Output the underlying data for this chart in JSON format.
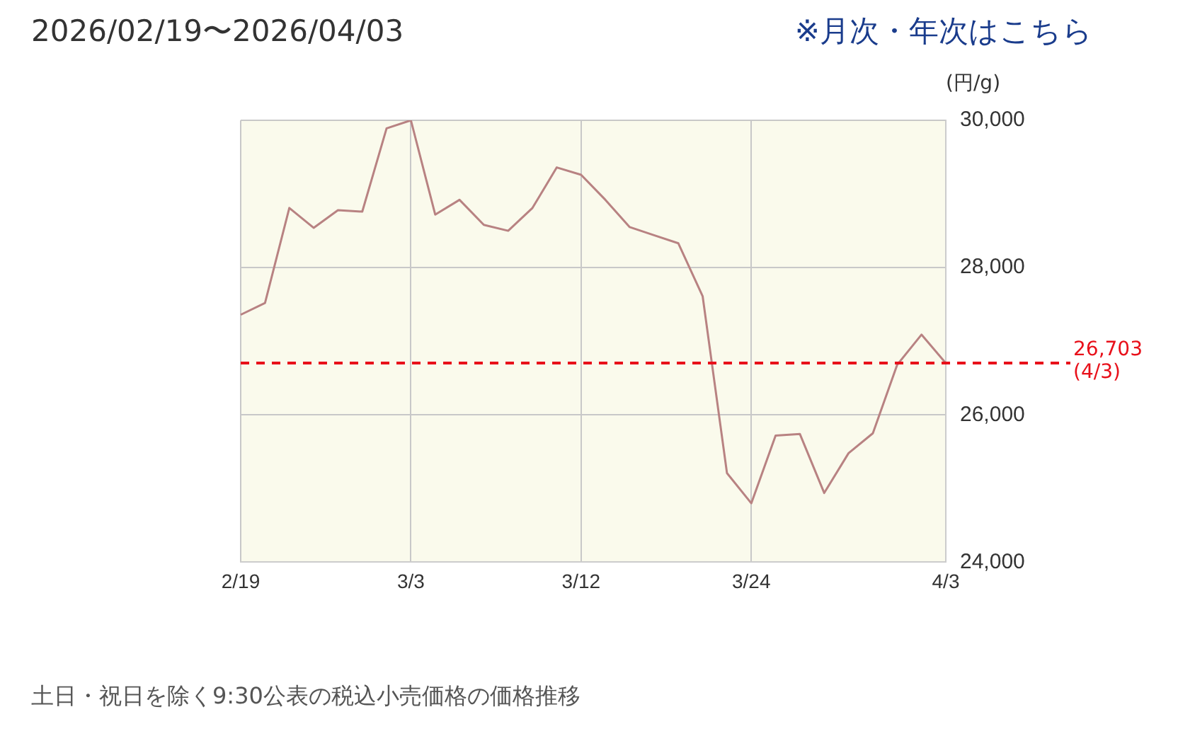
{
  "chart_data": {
    "type": "line",
    "title": "2026/02/19〜2026/04/03",
    "subtitle": "※月次・年次はこちら",
    "ylabel": "(円/g)",
    "categories": [
      "2/19",
      null,
      null,
      null,
      null,
      null,
      null,
      "3/3",
      null,
      null,
      null,
      null,
      null,
      null,
      "3/12",
      null,
      null,
      null,
      null,
      null,
      null,
      "3/24",
      null,
      null,
      null,
      null,
      null,
      null,
      null,
      "4/3"
    ],
    "series": [
      {
        "color": "#b88282",
        "values": [
          27360,
          27520,
          28810,
          28540,
          28780,
          28760,
          29890,
          30000,
          28720,
          28920,
          28580,
          28500,
          28810,
          29360,
          29260,
          28920,
          28550,
          28440,
          28330,
          27610,
          25210,
          24800,
          25720,
          25740,
          24940,
          25480,
          25750,
          26680,
          27090,
          26703
        ]
      }
    ],
    "ylim": [
      24000,
      30000
    ],
    "yticks": [
      {
        "value": 24000,
        "label": "24,000"
      },
      {
        "value": 26000,
        "label": "26,000"
      },
      {
        "value": 28000,
        "label": "28,000"
      },
      {
        "value": 30000,
        "label": "30,000"
      }
    ],
    "ref_lines": [
      {
        "axis": "y",
        "value": 26703,
        "label": "26,703\n(4/3)",
        "color": "#e8101a",
        "line_style": "dashed"
      }
    ],
    "annotations": [
      "土日・祝日を除く9:30公表の税込小売価格の価格推移"
    ],
    "grid": true,
    "legend": false,
    "marker": "none",
    "line_style": "solid"
  }
}
